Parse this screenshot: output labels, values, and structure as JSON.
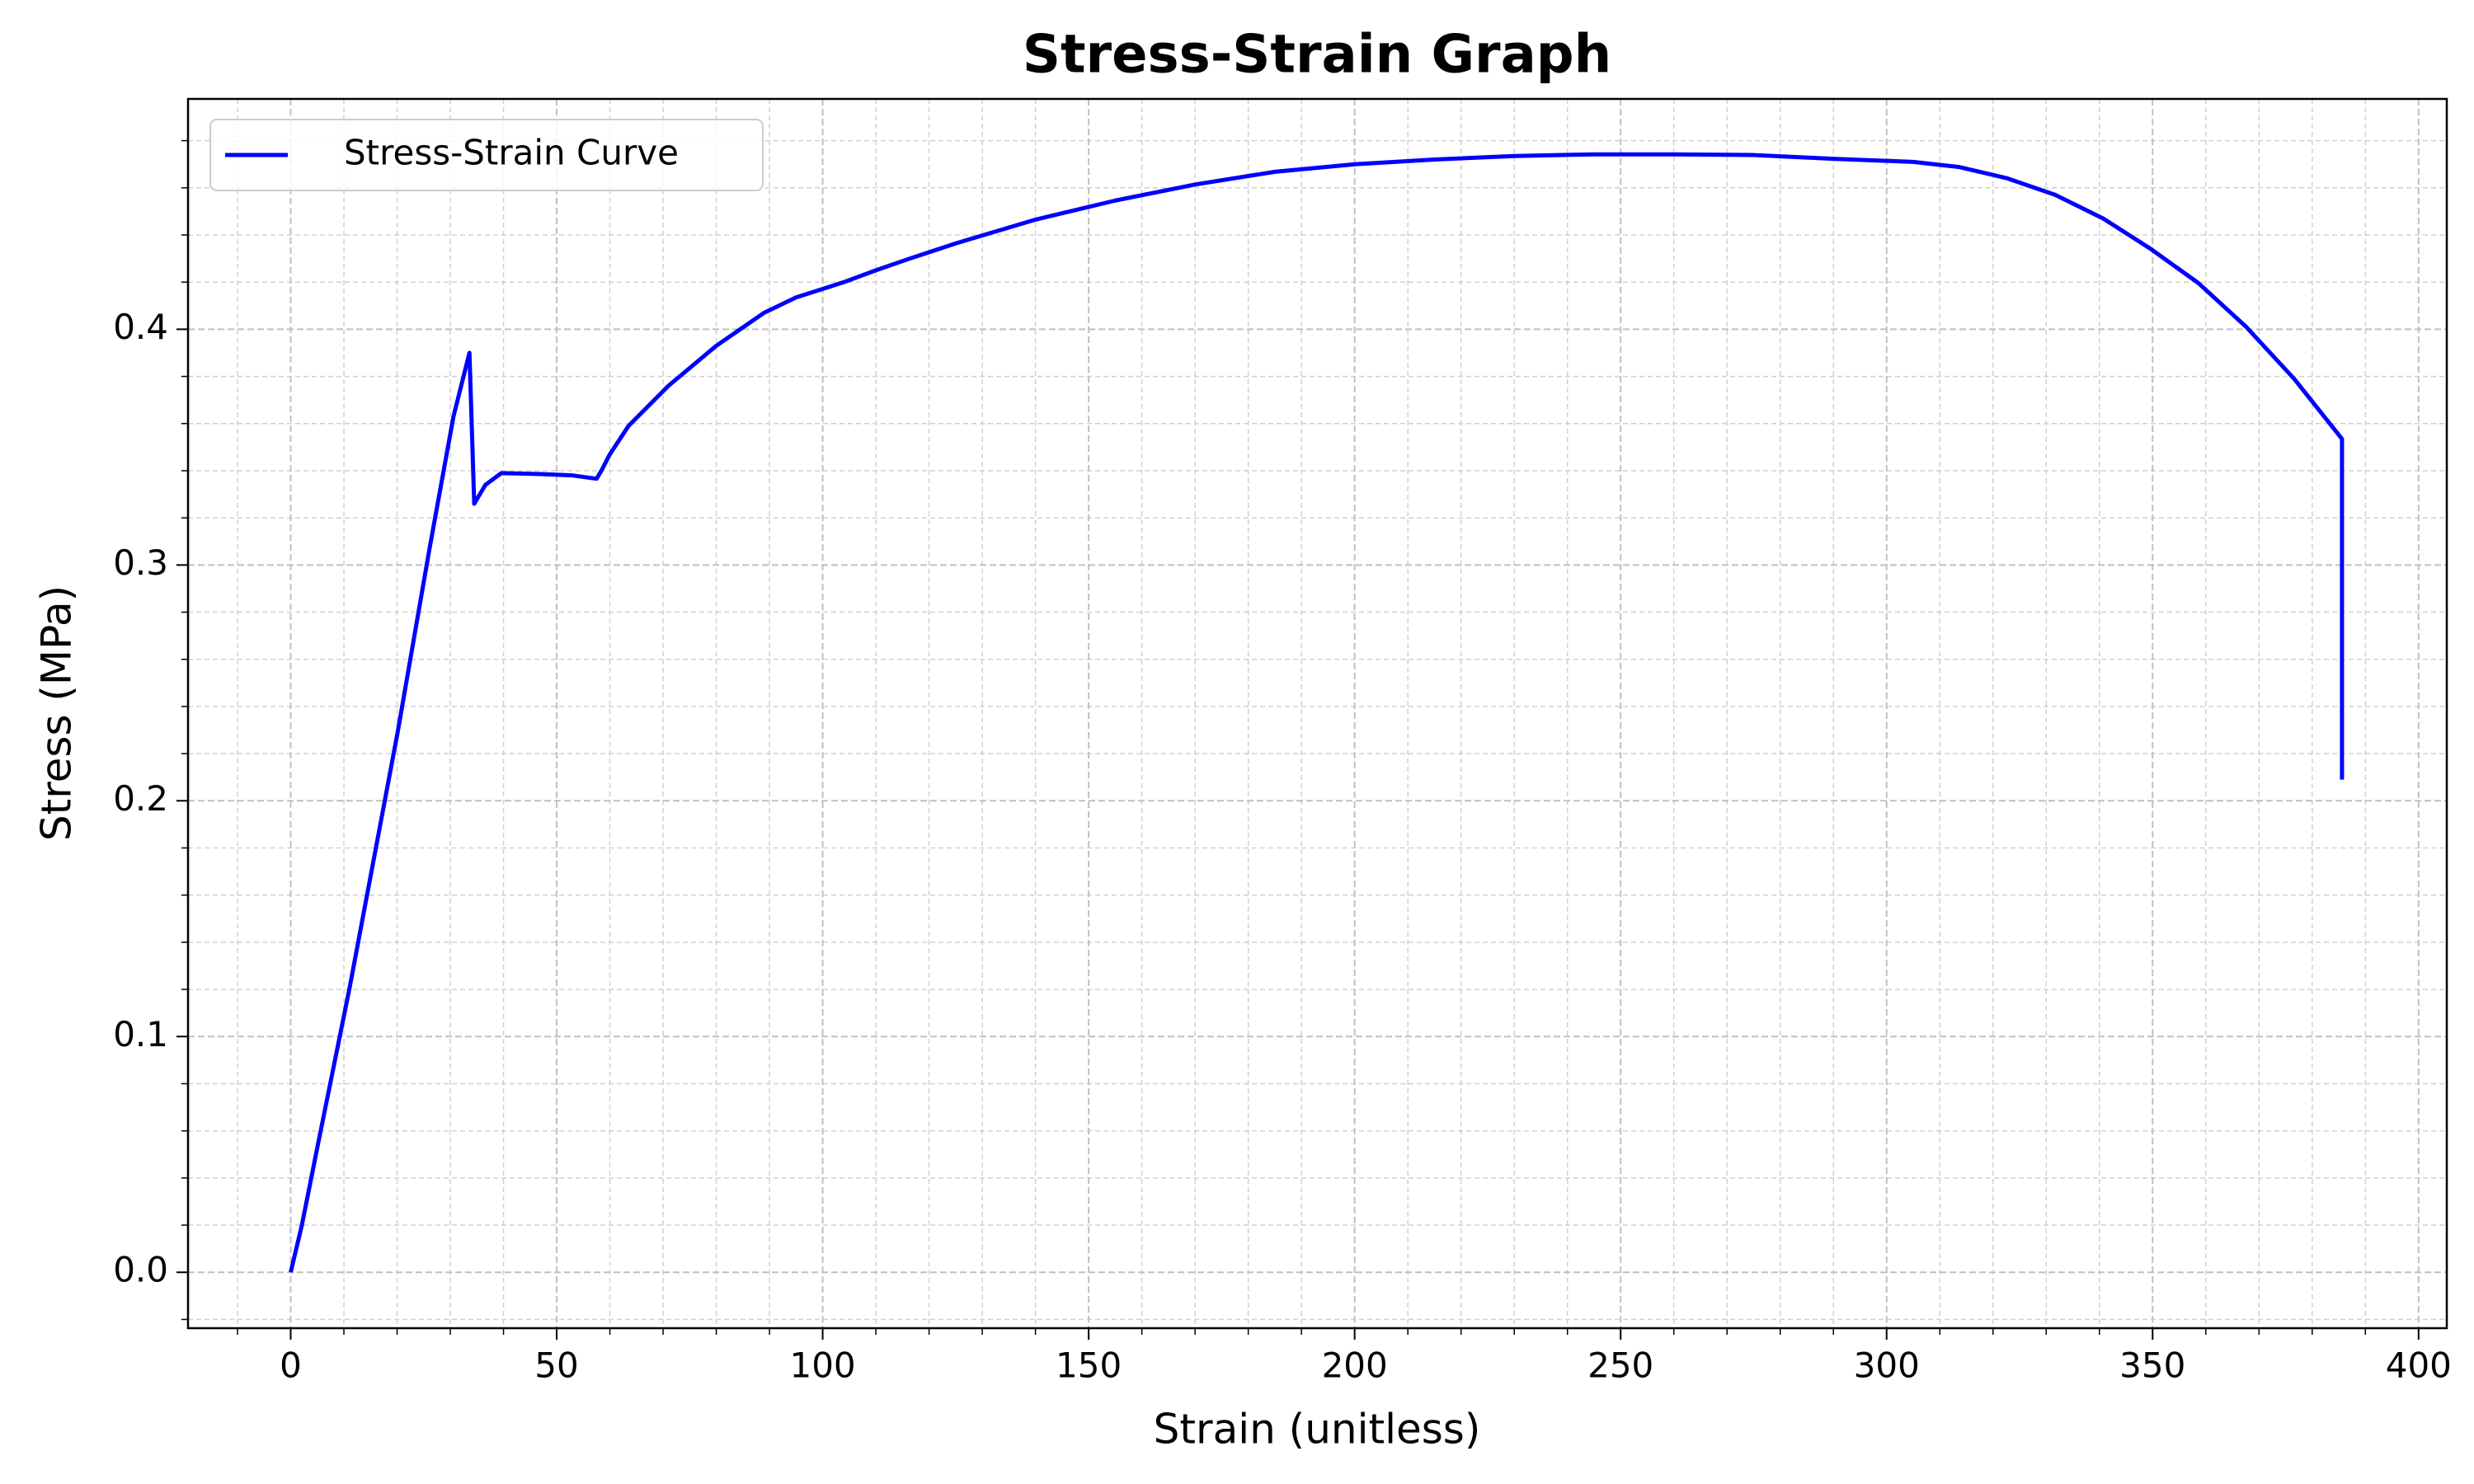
{
  "chart_data": {
    "type": "line",
    "title": "Stress-Strain Graph",
    "x_label": "Strain (unitless)",
    "y_label": "Stress (MPa)",
    "x": [
      0,
      2.1,
      5.1,
      11.1,
      20.1,
      26.1,
      30.6,
      33.6,
      34.5,
      36.6,
      39.6,
      47,
      53,
      57.5,
      58.4,
      60,
      63.5,
      71,
      80,
      89,
      95,
      104,
      110,
      116,
      125,
      140,
      155,
      170,
      185,
      200,
      215,
      230,
      245,
      260,
      275,
      290,
      305,
      313.7,
      322.7,
      331.7,
      340.7,
      349.7,
      358.6,
      367.6,
      376.6,
      382.6,
      385.6,
      385.6
    ],
    "series": [
      {
        "name": "Stress-Strain Curve",
        "color": "#0000ff",
        "values": [
          0,
          0.02,
          0.054,
          0.121,
          0.229,
          0.307,
          0.363,
          0.39,
          0.326,
          0.334,
          0.339,
          0.3386,
          0.338,
          0.3366,
          0.34,
          0.347,
          0.359,
          0.376,
          0.393,
          0.407,
          0.4135,
          0.42,
          0.425,
          0.4297,
          0.4364,
          0.4465,
          0.4546,
          0.4614,
          0.4668,
          0.47,
          0.472,
          0.4735,
          0.4742,
          0.4742,
          0.4739,
          0.4723,
          0.471,
          0.4688,
          0.464,
          0.457,
          0.447,
          0.434,
          0.4196,
          0.401,
          0.379,
          0.362,
          0.3535,
          0.209
        ]
      }
    ],
    "xlim": [
      -19.3,
      405.3
    ],
    "ylim": [
      -0.0237,
      0.4977
    ],
    "xticks": [
      0,
      50,
      100,
      150,
      200,
      250,
      300,
      350,
      400
    ],
    "yticks": [
      {
        "value": 0,
        "label": "0.0"
      },
      0.1,
      0.2,
      0.3,
      0.4
    ],
    "x_minor_ticks": [
      -10,
      10,
      20,
      30,
      40,
      60,
      70,
      80,
      90,
      110,
      120,
      130,
      140,
      160,
      170,
      180,
      190,
      210,
      220,
      230,
      240,
      260,
      270,
      280,
      290,
      310,
      320,
      330,
      340,
      360,
      370,
      380,
      390
    ],
    "y_minor_ticks": [
      -0.02,
      0.02,
      0.04,
      0.06,
      0.08,
      0.12,
      0.14,
      0.16,
      0.18,
      0.22,
      0.24,
      0.26,
      0.28,
      0.32,
      0.34,
      0.36,
      0.38,
      0.42,
      0.44,
      0.46,
      0.48
    ],
    "grid": true,
    "legend": "upper left"
  }
}
